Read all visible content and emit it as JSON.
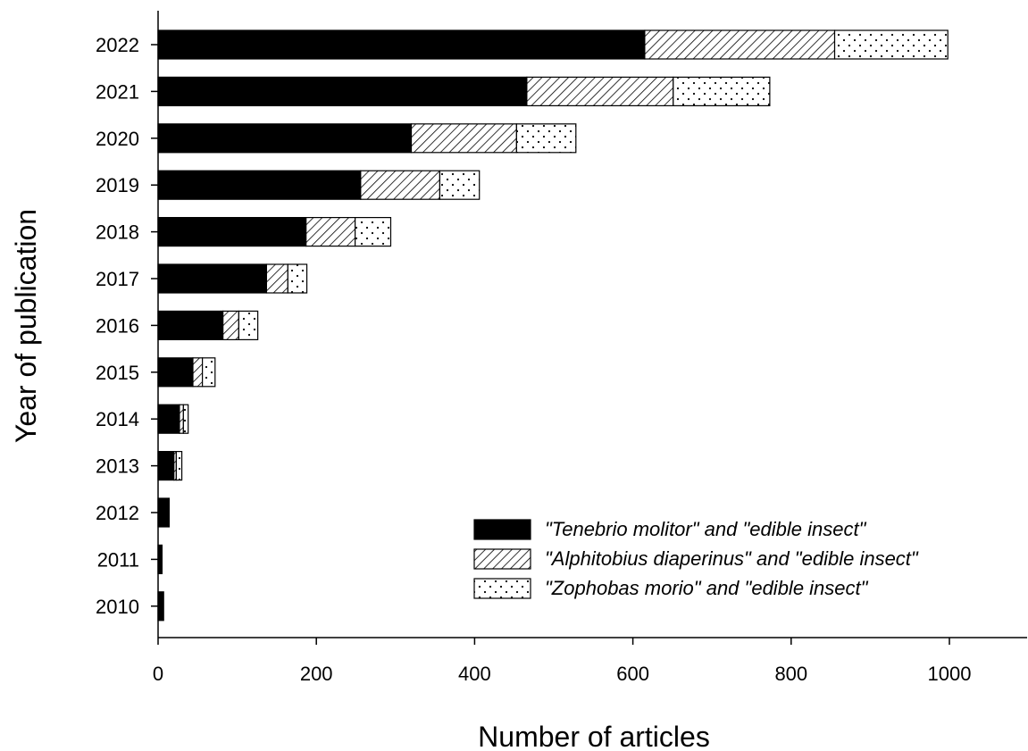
{
  "chart_data": {
    "type": "bar",
    "orientation": "horizontal",
    "stacked": true,
    "xlabel": "Number of articles",
    "ylabel": "Year of publication",
    "xlim": [
      0,
      1100
    ],
    "x_ticks": [
      "0",
      "200",
      "400",
      "600",
      "800",
      "1000"
    ],
    "categories": [
      "2010",
      "2011",
      "2012",
      "2013",
      "2014",
      "2015",
      "2016",
      "2017",
      "2018",
      "2019",
      "2020",
      "2021",
      "2022"
    ],
    "series": [
      {
        "name": "\"Tenebrio molitor\" and \"edible insect\"",
        "fill": "solid-black",
        "values": [
          7,
          5,
          14,
          20,
          27,
          44,
          82,
          137,
          187,
          256,
          320,
          466,
          615
        ]
      },
      {
        "name": "\"Alphitobius diaperinus\" and \"edible insect\"",
        "fill": "diagonal-hatch",
        "values": [
          0,
          0,
          0,
          3,
          5,
          12,
          20,
          27,
          62,
          100,
          133,
          185,
          240
        ]
      },
      {
        "name": "\"Zophobas morio\" and \"edible insect\"",
        "fill": "dots",
        "values": [
          0,
          0,
          0,
          7,
          6,
          16,
          24,
          24,
          45,
          50,
          75,
          122,
          143
        ]
      }
    ],
    "legend_position": "bottom-right",
    "grid": false
  }
}
